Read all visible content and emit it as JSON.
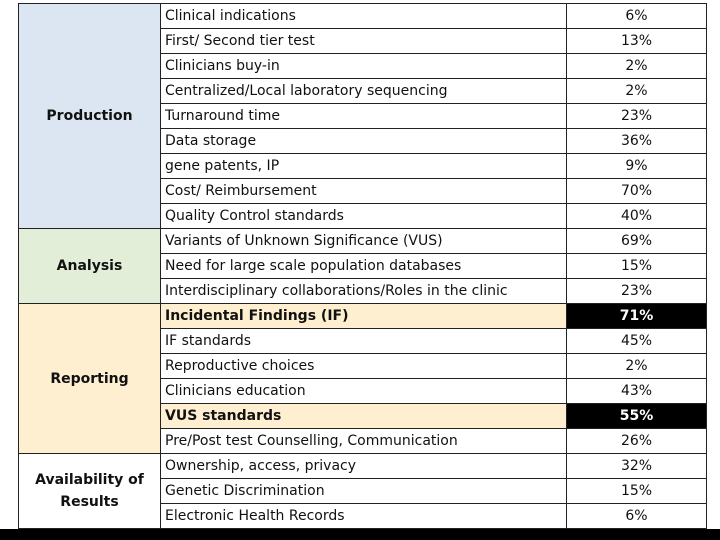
{
  "table": {
    "groups": [
      {
        "category": "Production",
        "rows": [
          {
            "item": "Clinical indications",
            "pct": "6%"
          },
          {
            "item": "First/ Second tier test",
            "pct": "13%"
          },
          {
            "item": "Clinicians buy-in",
            "pct": "2%"
          },
          {
            "item": "Centralized/Local laboratory sequencing",
            "pct": "2%"
          },
          {
            "item": "Turnaround time",
            "pct": "23%"
          },
          {
            "item": "Data storage",
            "pct": "36%"
          },
          {
            "item": "gene patents, IP",
            "pct": "9%"
          },
          {
            "item": "Cost/ Reimbursement",
            "pct": "70%"
          },
          {
            "item": "Quality Control standards",
            "pct": "40%"
          }
        ]
      },
      {
        "category": "Analysis",
        "rows": [
          {
            "item": "Variants of Unknown Significance (VUS)",
            "pct": "69%"
          },
          {
            "item": "Need for large scale population databases",
            "pct": "15%"
          },
          {
            "item": "Interdisciplinary collaborations/Roles in the clinic",
            "pct": "23%"
          }
        ]
      },
      {
        "category": "Reporting",
        "rows": [
          {
            "item": "Incidental Findings (IF)",
            "pct": "71%",
            "highlight": true
          },
          {
            "item": "IF standards",
            "pct": "45%"
          },
          {
            "item": "Reproductive choices",
            "pct": "2%"
          },
          {
            "item": "Clinicians education",
            "pct": "43%"
          },
          {
            "item": "VUS standards",
            "pct": "55%",
            "highlight": true
          },
          {
            "item": "Pre/Post test Counselling, Communication",
            "pct": "26%"
          }
        ]
      },
      {
        "category": "Availability of Results",
        "rows": [
          {
            "item": "Ownership, access, privacy",
            "pct": "32%"
          },
          {
            "item": "Genetic Discrimination",
            "pct": "15%"
          },
          {
            "item": "Electronic Health Records",
            "pct": "6%"
          }
        ]
      }
    ]
  }
}
